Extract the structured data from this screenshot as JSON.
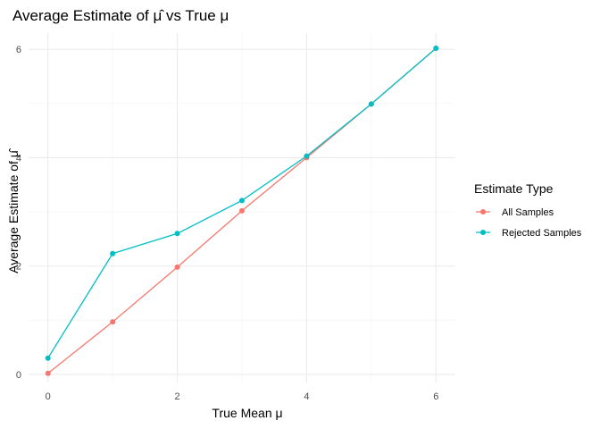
{
  "chart_data": {
    "type": "line",
    "title_main": "Average Estimate of ",
    "title_symbol": "μ̂",
    "title_rest": " vs True μ",
    "xlabel": "True Mean μ",
    "ylabel_main": "Average Estimate of ",
    "ylabel_symbol": "μ̂",
    "xlim": [
      -0.3,
      6.3
    ],
    "ylim": [
      -0.15,
      6.3
    ],
    "x_ticks": [
      0,
      2,
      4,
      6
    ],
    "x_tick_labels": [
      "0",
      "2",
      "4",
      "6"
    ],
    "y_ticks": [
      0,
      2,
      4,
      6
    ],
    "y_tick_labels": [
      "0",
      "2",
      "4",
      "6"
    ],
    "grid": true,
    "legend": {
      "title": "Estimate Type",
      "placement": "right"
    },
    "series": [
      {
        "name": "All Samples",
        "color": "#F8766D",
        "x": [
          0,
          1,
          2,
          3,
          4,
          5,
          6
        ],
        "y": [
          0.02,
          0.97,
          1.98,
          3.02,
          4.0,
          4.99,
          6.02
        ]
      },
      {
        "name": "Rejected Samples",
        "color": "#00BFC4",
        "x": [
          0,
          1,
          2,
          3,
          4,
          5,
          6
        ],
        "y": [
          0.3,
          2.23,
          2.6,
          3.21,
          4.03,
          4.99,
          6.02
        ]
      }
    ]
  }
}
